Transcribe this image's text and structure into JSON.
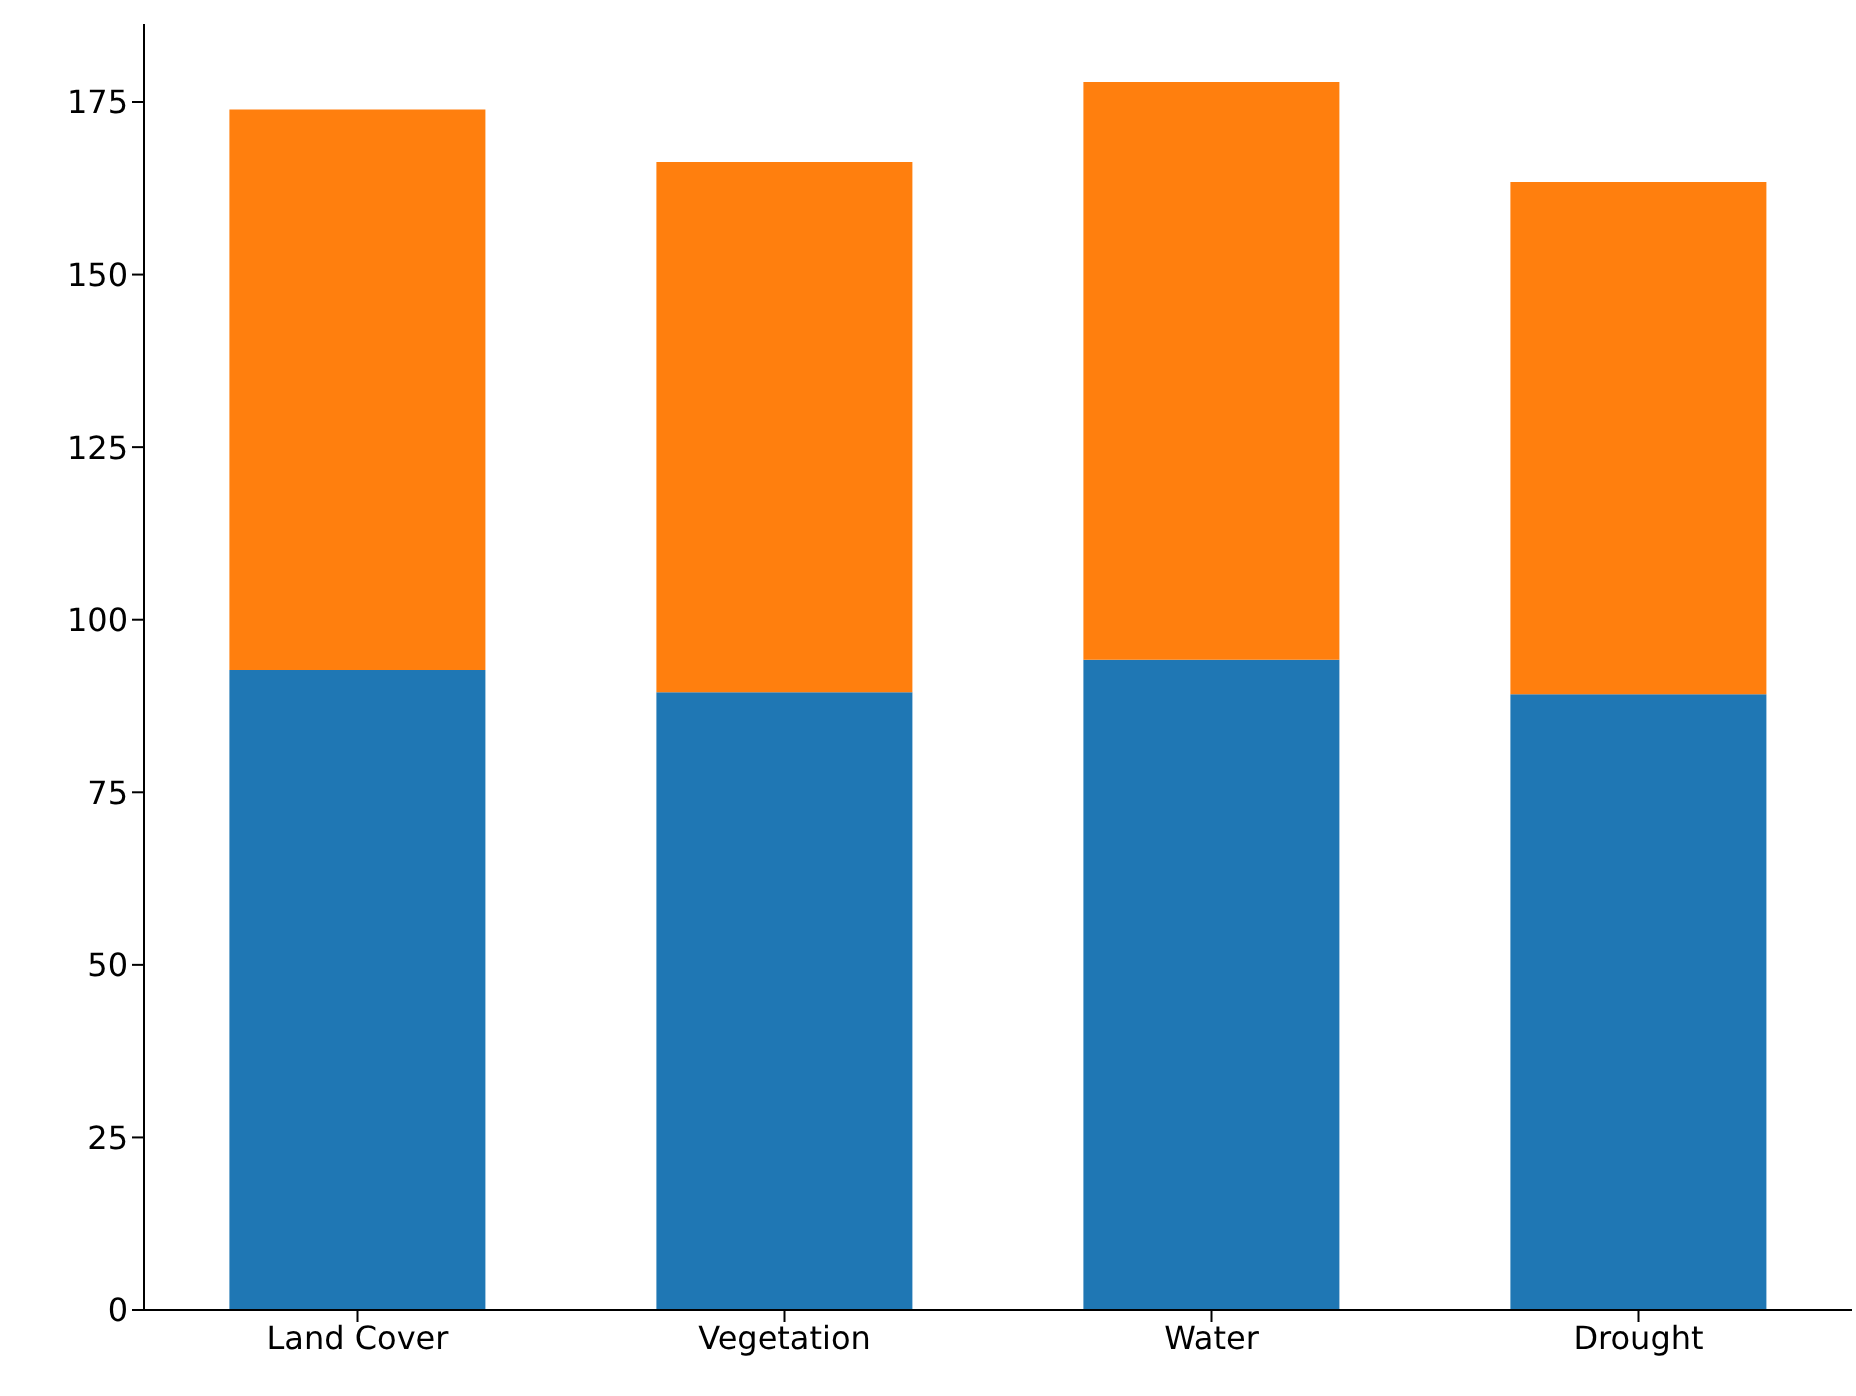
{
  "chart_data": {
    "type": "bar",
    "stacked": true,
    "categories": [
      "Land Cover",
      "Vegetation",
      "Water",
      "Drought"
    ],
    "series": [
      {
        "color": "#1f77b4",
        "values": [
          92.7,
          89.5,
          94.2,
          89.2
        ]
      },
      {
        "color": "#ff7f0e",
        "values": [
          81.2,
          76.8,
          83.7,
          74.2
        ]
      }
    ],
    "ylim": [
      0,
      186.3
    ],
    "yticks": [
      0,
      25,
      50,
      75,
      100,
      125,
      150,
      175
    ],
    "grid": false,
    "legend": false
  }
}
